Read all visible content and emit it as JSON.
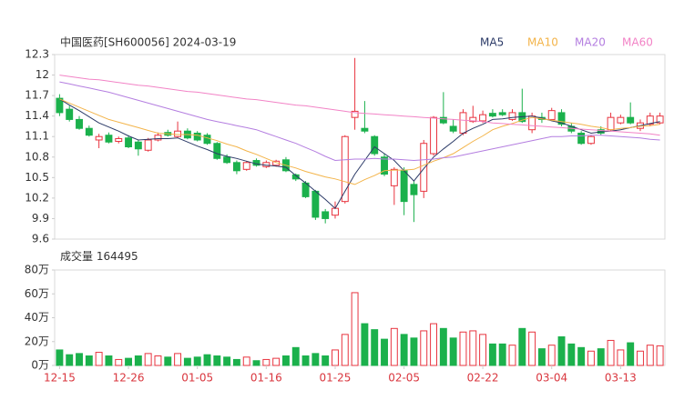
{
  "chart_data": [
    {
      "type": "candlestick",
      "title": "中国医药[SH600056] 2024-03-19",
      "up_color": "#e8343f",
      "down_color": "#1bb14c",
      "open": [
        11.66,
        11.5,
        11.35,
        11.22,
        11.05,
        11.12,
        11.03,
        11.08,
        11.02,
        10.9,
        11.05,
        11.16,
        11.1,
        11.18,
        11.15,
        11.12,
        11.0,
        10.8,
        10.72,
        10.62,
        10.75,
        10.66,
        10.68,
        10.76,
        10.54,
        10.42,
        10.3,
        10.0,
        9.95,
        10.15,
        11.38,
        11.22,
        11.1,
        10.8,
        10.38,
        10.6,
        10.4,
        10.3,
        10.85,
        11.38,
        11.25,
        11.15,
        11.32,
        11.33,
        11.44,
        11.45,
        11.35,
        11.45,
        11.2,
        11.38,
        11.35,
        11.45,
        11.25,
        11.15,
        11.0,
        11.2,
        11.2,
        11.3,
        11.38,
        11.22,
        11.28,
        11.3
      ],
      "high": [
        11.72,
        11.55,
        11.4,
        11.26,
        11.14,
        11.16,
        11.1,
        11.12,
        11.05,
        11.08,
        11.16,
        11.2,
        11.32,
        11.22,
        11.18,
        11.15,
        11.02,
        10.84,
        10.75,
        10.74,
        10.78,
        10.75,
        10.76,
        10.8,
        10.56,
        10.45,
        10.32,
        10.04,
        10.15,
        11.12,
        12.25,
        11.62,
        11.12,
        10.85,
        10.65,
        10.65,
        10.45,
        11.05,
        11.4,
        11.75,
        11.35,
        11.5,
        11.55,
        11.48,
        11.5,
        11.5,
        11.5,
        11.8,
        11.45,
        11.45,
        11.52,
        11.5,
        11.3,
        11.18,
        11.12,
        11.25,
        11.45,
        11.42,
        11.6,
        11.35,
        11.45,
        11.45
      ],
      "low": [
        11.4,
        11.32,
        11.2,
        11.1,
        10.93,
        11.0,
        11.0,
        10.93,
        10.82,
        10.88,
        11.03,
        11.1,
        11.08,
        11.06,
        11.03,
        10.98,
        10.76,
        10.7,
        10.55,
        10.6,
        10.66,
        10.64,
        10.66,
        10.58,
        10.45,
        10.2,
        9.88,
        9.83,
        9.9,
        10.12,
        11.2,
        11.15,
        10.82,
        10.52,
        10.1,
        9.95,
        9.85,
        10.2,
        10.82,
        11.28,
        11.15,
        11.12,
        11.3,
        11.3,
        11.38,
        11.4,
        11.33,
        11.3,
        11.15,
        11.3,
        11.33,
        11.25,
        11.15,
        10.98,
        10.98,
        11.12,
        11.18,
        11.28,
        11.28,
        11.18,
        11.25,
        11.28
      ],
      "close": [
        11.45,
        11.35,
        11.22,
        11.12,
        11.1,
        11.02,
        11.07,
        10.95,
        10.92,
        11.05,
        11.12,
        11.12,
        11.18,
        11.08,
        11.05,
        11.0,
        10.78,
        10.72,
        10.6,
        10.72,
        10.68,
        10.72,
        10.74,
        10.6,
        10.48,
        10.22,
        9.92,
        9.9,
        10.05,
        11.1,
        11.47,
        11.18,
        10.85,
        10.55,
        10.62,
        10.15,
        10.25,
        11.0,
        11.38,
        11.3,
        11.18,
        11.45,
        11.38,
        11.42,
        11.4,
        11.42,
        11.45,
        11.32,
        11.4,
        11.35,
        11.48,
        11.28,
        11.18,
        11.0,
        11.1,
        11.15,
        11.38,
        11.38,
        11.3,
        11.3,
        11.4,
        11.4
      ],
      "series": [
        {
          "name": "MA5",
          "color": "#2b3a67",
          "values": [
            11.65,
            11.56,
            11.48,
            11.39,
            11.3,
            11.24,
            11.18,
            11.11,
            11.05,
            11.06,
            11.07,
            11.07,
            11.08,
            11.02,
            10.96,
            10.91,
            10.85,
            10.81,
            10.78,
            10.74,
            10.7,
            10.68,
            10.67,
            10.65,
            10.53,
            10.42,
            10.3,
            10.18,
            10.05,
            10.3,
            10.55,
            10.75,
            10.95,
            10.85,
            10.75,
            10.6,
            10.45,
            10.63,
            10.8,
            10.92,
            11.03,
            11.15,
            11.22,
            11.28,
            11.35,
            11.36,
            11.38,
            11.39,
            11.4,
            11.37,
            11.33,
            11.3,
            11.25,
            11.2,
            11.15,
            11.17,
            11.18,
            11.2,
            11.23,
            11.26,
            11.29,
            11.32
          ]
        },
        {
          "name": "MA10",
          "color": "#f3b44a",
          "values": [
            11.65,
            11.59,
            11.53,
            11.47,
            11.41,
            11.35,
            11.31,
            11.27,
            11.23,
            11.19,
            11.15,
            11.14,
            11.13,
            11.13,
            11.12,
            11.08,
            11.04,
            10.99,
            10.95,
            10.89,
            10.84,
            10.78,
            10.72,
            10.68,
            10.64,
            10.59,
            10.55,
            10.51,
            10.48,
            10.44,
            10.4,
            10.47,
            10.53,
            10.6,
            10.61,
            10.61,
            10.62,
            10.68,
            10.74,
            10.79,
            10.85,
            10.94,
            11.03,
            11.11,
            11.2,
            11.25,
            11.29,
            11.34,
            11.38,
            11.36,
            11.34,
            11.32,
            11.3,
            11.28,
            11.25,
            11.23,
            11.2,
            11.22,
            11.23,
            11.25,
            11.26,
            11.28
          ]
        },
        {
          "name": "MA20",
          "color": "#b47ee0",
          "values": [
            11.9,
            11.87,
            11.84,
            11.81,
            11.78,
            11.75,
            11.71,
            11.67,
            11.63,
            11.59,
            11.55,
            11.51,
            11.47,
            11.43,
            11.39,
            11.35,
            11.32,
            11.29,
            11.26,
            11.23,
            11.2,
            11.15,
            11.1,
            11.05,
            11.0,
            10.94,
            10.88,
            10.81,
            10.75,
            10.76,
            10.77,
            10.77,
            10.78,
            10.77,
            10.77,
            10.76,
            10.75,
            10.76,
            10.77,
            10.79,
            10.8,
            10.83,
            10.86,
            10.89,
            10.92,
            10.95,
            10.98,
            11.01,
            11.04,
            11.07,
            11.1,
            11.1,
            11.11,
            11.11,
            11.12,
            11.12,
            11.11,
            11.1,
            11.09,
            11.08,
            11.06,
            11.05
          ]
        },
        {
          "name": "MA60",
          "color": "#f283c6",
          "values": [
            12.0,
            11.98,
            11.96,
            11.94,
            11.93,
            11.91,
            11.89,
            11.87,
            11.85,
            11.84,
            11.82,
            11.8,
            11.78,
            11.76,
            11.75,
            11.73,
            11.71,
            11.69,
            11.67,
            11.65,
            11.64,
            11.62,
            11.6,
            11.58,
            11.56,
            11.55,
            11.53,
            11.51,
            11.49,
            11.47,
            11.45,
            11.44,
            11.43,
            11.42,
            11.41,
            11.4,
            11.39,
            11.38,
            11.37,
            11.36,
            11.35,
            11.34,
            11.33,
            11.32,
            11.3,
            11.29,
            11.28,
            11.27,
            11.26,
            11.25,
            11.24,
            11.23,
            11.22,
            11.21,
            11.2,
            11.19,
            11.18,
            11.17,
            11.16,
            11.15,
            11.14,
            11.12
          ]
        }
      ],
      "ylim": [
        9.6,
        12.3
      ],
      "yticks": [
        12.3,
        12,
        11.7,
        11.4,
        11.1,
        10.8,
        10.5,
        10.2,
        9.9,
        9.6
      ]
    },
    {
      "type": "bar",
      "title": "成交量",
      "latest": 164495,
      "categories": [
        "12-15",
        null,
        null,
        null,
        null,
        null,
        null,
        "12-26",
        null,
        null,
        null,
        null,
        null,
        null,
        "01-05",
        null,
        null,
        null,
        null,
        null,
        null,
        "01-16",
        null,
        null,
        null,
        null,
        null,
        null,
        "01-25",
        null,
        null,
        null,
        null,
        null,
        null,
        "02-05",
        null,
        null,
        null,
        null,
        null,
        null,
        null,
        "02-22",
        null,
        null,
        null,
        null,
        null,
        null,
        "03-04",
        null,
        null,
        null,
        null,
        null,
        null,
        "03-13",
        null,
        null,
        null,
        null
      ],
      "values": [
        13,
        9,
        10,
        8,
        11,
        8,
        5,
        6,
        8,
        10,
        8,
        7,
        10,
        6,
        7,
        9,
        8,
        7,
        5,
        7,
        4,
        5,
        6,
        8,
        15,
        8,
        10,
        8,
        13,
        26,
        61,
        35,
        30,
        22,
        31,
        26,
        23,
        29,
        35,
        31,
        23,
        28,
        29,
        26,
        18,
        18,
        17,
        31,
        28,
        14,
        17,
        24,
        18,
        15,
        12,
        14,
        21,
        13,
        19,
        12,
        17,
        16.45
      ],
      "ylim": [
        0,
        80
      ],
      "yticks": [
        {
          "value": 80,
          "label": "80万"
        },
        {
          "value": 60,
          "label": "60万"
        },
        {
          "value": 40,
          "label": "40万"
        },
        {
          "value": 20,
          "label": "20万"
        },
        {
          "value": 0,
          "label": "0万"
        }
      ]
    }
  ]
}
